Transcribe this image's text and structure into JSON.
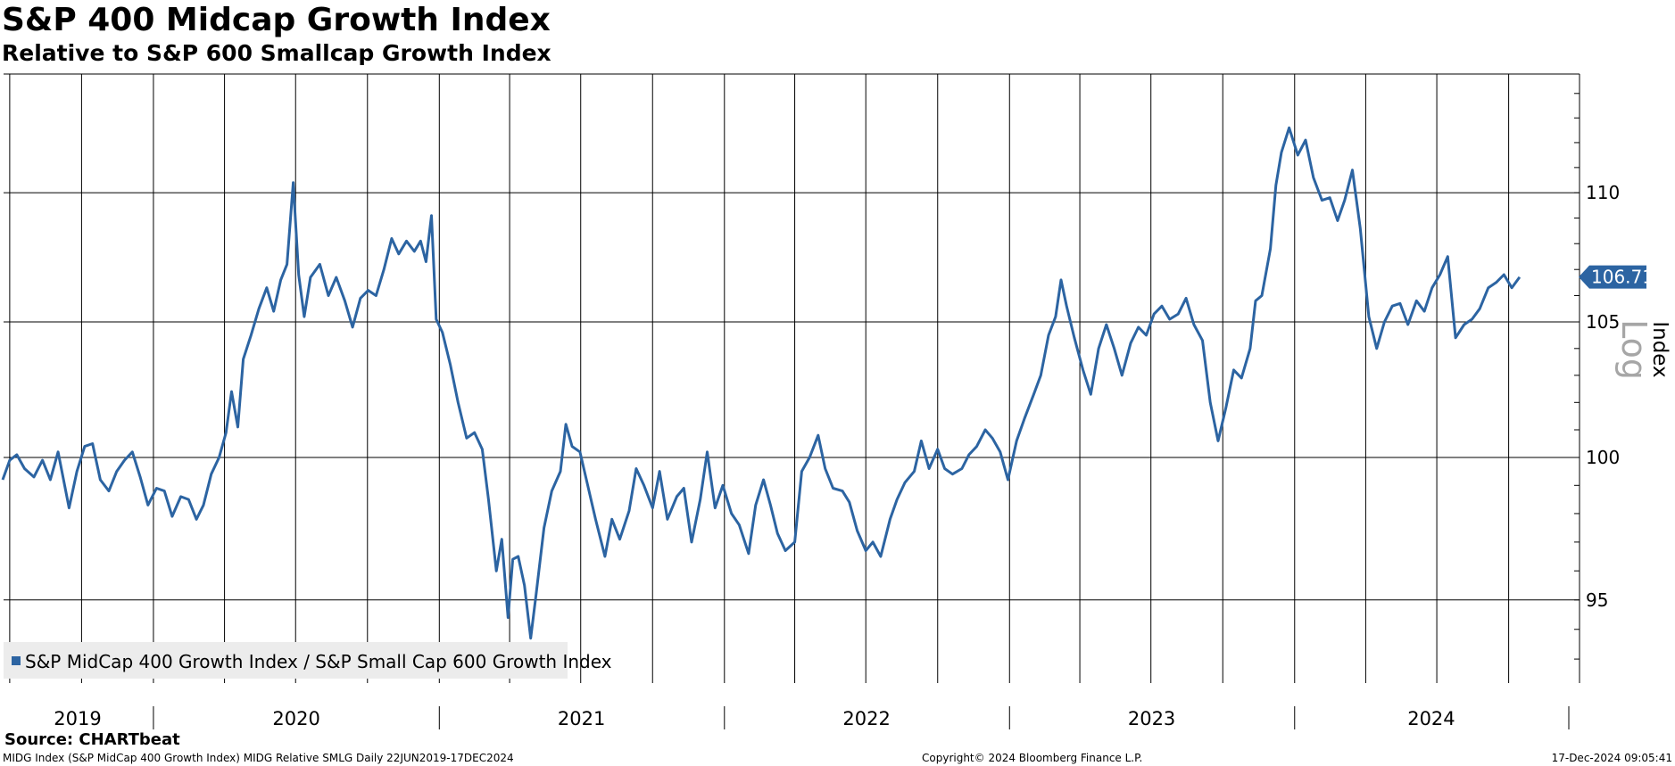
{
  "header": {
    "title": "S&P 400 Midcap Growth Index",
    "subtitle": "Relative to S&P 600 Smallcap Growth Index"
  },
  "footer": {
    "source": "Source: CHARTbeat",
    "left": "MIDG Index (S&P MidCap 400 Growth Index) MIDG Relative SMLG  Daily 22JUN2019-17DEC2024",
    "center": "Copyright© 2024 Bloomberg Finance L.P.",
    "right": "17-Dec-2024 09:05:41"
  },
  "colors": {
    "series": "#2c64a2",
    "gridline": "#000000",
    "legend_bg": "#ececec",
    "axis_scale_label": "#a6a6a6"
  },
  "chart_data": {
    "type": "line",
    "title": "S&P 400 Midcap Growth Index",
    "subtitle": "Relative to S&P 600 Smallcap Growth Index",
    "ylabel": "Index",
    "yscale": "log",
    "yscale_label": "Log",
    "ylim": [
      92.2,
      114.8
    ],
    "yticks": [
      95,
      100,
      105,
      110
    ],
    "xlim": [
      "2019-06-22",
      "2024-12-17"
    ],
    "x_tick_labels": [
      "2019",
      "2020",
      "2021",
      "2022",
      "2023",
      "2024"
    ],
    "grid": true,
    "legend": "bottom-left",
    "last_value": 106.71,
    "last_value_label": "106.71",
    "series": [
      {
        "name": "S&P MidCap 400 Growth Index / S&P Small Cap 600 Growth Index",
        "points": [
          [
            "2019-06-22",
            99.2
          ],
          [
            "2019-07-01",
            99.9
          ],
          [
            "2019-07-10",
            100.1
          ],
          [
            "2019-07-20",
            99.6
          ],
          [
            "2019-08-01",
            99.3
          ],
          [
            "2019-08-12",
            99.9
          ],
          [
            "2019-08-22",
            99.2
          ],
          [
            "2019-09-01",
            100.2
          ],
          [
            "2019-09-15",
            98.2
          ],
          [
            "2019-09-25",
            99.5
          ],
          [
            "2019-10-05",
            100.4
          ],
          [
            "2019-10-15",
            100.5
          ],
          [
            "2019-10-25",
            99.2
          ],
          [
            "2019-11-05",
            98.8
          ],
          [
            "2019-11-15",
            99.5
          ],
          [
            "2019-11-25",
            99.9
          ],
          [
            "2019-12-05",
            100.2
          ],
          [
            "2019-12-15",
            99.3
          ],
          [
            "2019-12-25",
            98.3
          ],
          [
            "2020-01-05",
            98.9
          ],
          [
            "2020-01-15",
            98.8
          ],
          [
            "2020-01-25",
            97.9
          ],
          [
            "2020-02-05",
            98.6
          ],
          [
            "2020-02-15",
            98.5
          ],
          [
            "2020-02-25",
            97.8
          ],
          [
            "2020-03-05",
            98.3
          ],
          [
            "2020-03-15",
            99.4
          ],
          [
            "2020-03-25",
            100.0
          ],
          [
            "2020-04-03",
            100.9
          ],
          [
            "2020-04-10",
            102.4
          ],
          [
            "2020-04-18",
            101.1
          ],
          [
            "2020-04-25",
            103.6
          ],
          [
            "2020-05-05",
            104.5
          ],
          [
            "2020-05-15",
            105.5
          ],
          [
            "2020-05-25",
            106.3
          ],
          [
            "2020-06-03",
            105.4
          ],
          [
            "2020-06-12",
            106.6
          ],
          [
            "2020-06-20",
            107.2
          ],
          [
            "2020-06-28",
            110.4
          ],
          [
            "2020-07-05",
            106.8
          ],
          [
            "2020-07-12",
            105.2
          ],
          [
            "2020-07-20",
            106.7
          ],
          [
            "2020-08-01",
            107.2
          ],
          [
            "2020-08-12",
            106.0
          ],
          [
            "2020-08-22",
            106.7
          ],
          [
            "2020-09-02",
            105.8
          ],
          [
            "2020-09-12",
            104.8
          ],
          [
            "2020-09-22",
            105.9
          ],
          [
            "2020-10-02",
            106.2
          ],
          [
            "2020-10-12",
            106.0
          ],
          [
            "2020-10-22",
            107.0
          ],
          [
            "2020-11-01",
            108.2
          ],
          [
            "2020-11-10",
            107.6
          ],
          [
            "2020-11-20",
            108.1
          ],
          [
            "2020-11-30",
            107.7
          ],
          [
            "2020-12-08",
            108.1
          ],
          [
            "2020-12-15",
            107.3
          ],
          [
            "2020-12-22",
            109.1
          ],
          [
            "2020-12-28",
            105.1
          ],
          [
            "2021-01-05",
            104.6
          ],
          [
            "2021-01-15",
            103.4
          ],
          [
            "2021-01-25",
            102.0
          ],
          [
            "2021-02-05",
            100.7
          ],
          [
            "2021-02-15",
            100.9
          ],
          [
            "2021-02-25",
            100.3
          ],
          [
            "2021-03-05",
            98.5
          ],
          [
            "2021-03-15",
            96.0
          ],
          [
            "2021-03-22",
            97.1
          ],
          [
            "2021-03-30",
            94.4
          ],
          [
            "2021-04-05",
            96.4
          ],
          [
            "2021-04-12",
            96.5
          ],
          [
            "2021-04-20",
            95.5
          ],
          [
            "2021-04-28",
            93.7
          ],
          [
            "2021-05-05",
            95.2
          ],
          [
            "2021-05-15",
            97.5
          ],
          [
            "2021-05-25",
            98.8
          ],
          [
            "2021-06-05",
            99.5
          ],
          [
            "2021-06-12",
            101.2
          ],
          [
            "2021-06-20",
            100.4
          ],
          [
            "2021-06-30",
            100.2
          ],
          [
            "2021-07-10",
            99.0
          ],
          [
            "2021-07-20",
            97.8
          ],
          [
            "2021-08-01",
            96.5
          ],
          [
            "2021-08-10",
            97.8
          ],
          [
            "2021-08-20",
            97.1
          ],
          [
            "2021-09-01",
            98.1
          ],
          [
            "2021-09-10",
            99.6
          ],
          [
            "2021-09-20",
            99.0
          ],
          [
            "2021-10-01",
            98.2
          ],
          [
            "2021-10-10",
            99.5
          ],
          [
            "2021-10-20",
            97.8
          ],
          [
            "2021-11-01",
            98.6
          ],
          [
            "2021-11-10",
            98.9
          ],
          [
            "2021-11-20",
            97.0
          ],
          [
            "2021-12-01",
            98.5
          ],
          [
            "2021-12-10",
            100.2
          ],
          [
            "2021-12-20",
            98.2
          ],
          [
            "2021-12-30",
            99.0
          ],
          [
            "2022-01-10",
            98.0
          ],
          [
            "2022-01-20",
            97.6
          ],
          [
            "2022-02-01",
            96.6
          ],
          [
            "2022-02-10",
            98.3
          ],
          [
            "2022-02-20",
            99.2
          ],
          [
            "2022-03-01",
            98.3
          ],
          [
            "2022-03-10",
            97.3
          ],
          [
            "2022-03-20",
            96.7
          ],
          [
            "2022-04-01",
            97.0
          ],
          [
            "2022-04-10",
            99.5
          ],
          [
            "2022-04-20",
            100.0
          ],
          [
            "2022-05-01",
            100.8
          ],
          [
            "2022-05-10",
            99.6
          ],
          [
            "2022-05-20",
            98.9
          ],
          [
            "2022-06-01",
            98.8
          ],
          [
            "2022-06-10",
            98.4
          ],
          [
            "2022-06-20",
            97.4
          ],
          [
            "2022-07-01",
            96.7
          ],
          [
            "2022-07-10",
            97.0
          ],
          [
            "2022-07-20",
            96.5
          ],
          [
            "2022-08-01",
            97.8
          ],
          [
            "2022-08-10",
            98.5
          ],
          [
            "2022-08-20",
            99.1
          ],
          [
            "2022-09-01",
            99.5
          ],
          [
            "2022-09-10",
            100.6
          ],
          [
            "2022-09-20",
            99.6
          ],
          [
            "2022-10-01",
            100.3
          ],
          [
            "2022-10-10",
            99.6
          ],
          [
            "2022-10-20",
            99.4
          ],
          [
            "2022-11-01",
            99.6
          ],
          [
            "2022-11-10",
            100.1
          ],
          [
            "2022-11-20",
            100.4
          ],
          [
            "2022-12-01",
            101.0
          ],
          [
            "2022-12-10",
            100.7
          ],
          [
            "2022-12-20",
            100.2
          ],
          [
            "2022-12-30",
            99.2
          ],
          [
            "2023-01-10",
            100.6
          ],
          [
            "2023-01-20",
            101.4
          ],
          [
            "2023-02-01",
            102.3
          ],
          [
            "2023-02-10",
            103.0
          ],
          [
            "2023-02-20",
            104.5
          ],
          [
            "2023-03-01",
            105.2
          ],
          [
            "2023-03-08",
            106.6
          ],
          [
            "2023-03-15",
            105.6
          ],
          [
            "2023-03-25",
            104.4
          ],
          [
            "2023-04-05",
            103.2
          ],
          [
            "2023-04-15",
            102.3
          ],
          [
            "2023-04-25",
            104.0
          ],
          [
            "2023-05-05",
            104.9
          ],
          [
            "2023-05-15",
            104.0
          ],
          [
            "2023-05-25",
            103.0
          ],
          [
            "2023-06-05",
            104.2
          ],
          [
            "2023-06-15",
            104.8
          ],
          [
            "2023-06-25",
            104.5
          ],
          [
            "2023-07-05",
            105.3
          ],
          [
            "2023-07-15",
            105.6
          ],
          [
            "2023-07-25",
            105.1
          ],
          [
            "2023-08-05",
            105.3
          ],
          [
            "2023-08-15",
            105.9
          ],
          [
            "2023-08-25",
            104.9
          ],
          [
            "2023-09-05",
            104.3
          ],
          [
            "2023-09-15",
            102.0
          ],
          [
            "2023-09-25",
            100.6
          ],
          [
            "2023-10-05",
            101.8
          ],
          [
            "2023-10-15",
            103.2
          ],
          [
            "2023-10-25",
            102.9
          ],
          [
            "2023-11-05",
            104.0
          ],
          [
            "2023-11-12",
            105.8
          ],
          [
            "2023-11-20",
            106.0
          ],
          [
            "2023-12-01",
            107.8
          ],
          [
            "2023-12-08",
            110.3
          ],
          [
            "2023-12-15",
            111.6
          ],
          [
            "2023-12-25",
            112.6
          ],
          [
            "2024-01-05",
            111.5
          ],
          [
            "2024-01-15",
            112.1
          ],
          [
            "2024-01-25",
            110.6
          ],
          [
            "2024-02-05",
            109.7
          ],
          [
            "2024-02-15",
            109.8
          ],
          [
            "2024-02-25",
            108.9
          ],
          [
            "2024-03-05",
            109.7
          ],
          [
            "2024-03-15",
            110.9
          ],
          [
            "2024-03-25",
            108.6
          ],
          [
            "2024-04-05",
            105.2
          ],
          [
            "2024-04-15",
            104.0
          ],
          [
            "2024-04-25",
            105.0
          ],
          [
            "2024-05-05",
            105.6
          ],
          [
            "2024-05-15",
            105.7
          ],
          [
            "2024-05-25",
            104.9
          ],
          [
            "2024-06-05",
            105.8
          ],
          [
            "2024-06-15",
            105.4
          ],
          [
            "2024-06-25",
            106.3
          ],
          [
            "2024-07-05",
            106.8
          ],
          [
            "2024-07-15",
            107.5
          ],
          [
            "2024-07-25",
            104.4
          ],
          [
            "2024-08-05",
            104.9
          ],
          [
            "2024-08-15",
            105.1
          ],
          [
            "2024-08-25",
            105.5
          ],
          [
            "2024-09-05",
            106.3
          ],
          [
            "2024-09-15",
            106.5
          ],
          [
            "2024-09-25",
            106.8
          ],
          [
            "2024-10-05",
            106.3
          ],
          [
            "2024-10-15",
            106.71
          ]
        ]
      }
    ]
  }
}
